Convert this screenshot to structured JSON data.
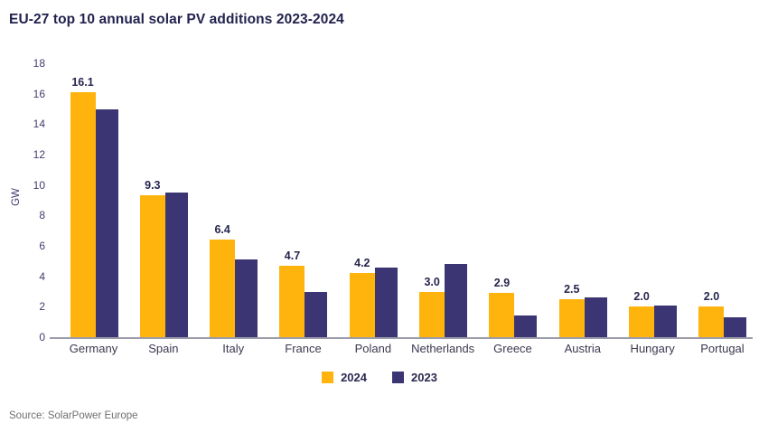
{
  "title": "EU-27 top 10 annual solar PV additions 2023-2024",
  "source": "Source: SolarPower Europe",
  "ylabel": "GW",
  "colors": {
    "series_2024": "#ffb40d",
    "series_2023": "#3c3573",
    "title_text": "#23224e",
    "axis_text": "#403d6e",
    "axis_line": "#9c9caa",
    "source_text": "#6f6f6f"
  },
  "legend": {
    "items": [
      {
        "label": "2024",
        "color": "#ffb40d"
      },
      {
        "label": "2023",
        "color": "#3c3573"
      }
    ]
  },
  "chart_data": {
    "type": "bar",
    "title": "EU-27 top 10 annual solar PV additions 2023-2024",
    "xlabel": "",
    "ylabel": "GW",
    "ylim": [
      0,
      18
    ],
    "yticks": [
      0,
      2,
      4,
      6,
      8,
      10,
      12,
      14,
      16,
      18
    ],
    "grid": false,
    "legend_position": "bottom-center",
    "categories": [
      "Germany",
      "Spain",
      "Italy",
      "France",
      "Poland",
      "Netherlands",
      "Greece",
      "Austria",
      "Hungary",
      "Portugal"
    ],
    "series": [
      {
        "name": "2024",
        "color": "#ffb40d",
        "values": [
          16.1,
          9.3,
          6.4,
          4.7,
          4.2,
          3.0,
          2.9,
          2.5,
          2.0,
          2.0
        ],
        "data_labels": [
          "16.1",
          "9.3",
          "6.4",
          "4.7",
          "4.2",
          "3.0",
          "2.9",
          "2.5",
          "2.0",
          "2.0"
        ]
      },
      {
        "name": "2023",
        "color": "#3c3573",
        "values": [
          15.0,
          9.5,
          5.1,
          3.0,
          4.6,
          4.8,
          1.4,
          2.6,
          2.1,
          1.3
        ],
        "data_labels": []
      }
    ]
  }
}
